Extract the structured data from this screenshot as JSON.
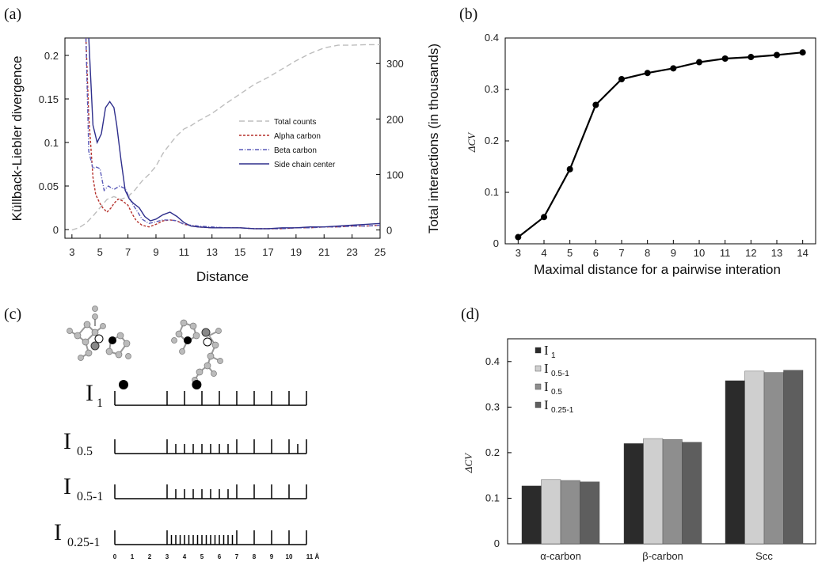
{
  "panels": {
    "a": {
      "label": "(a)"
    },
    "b": {
      "label": "(b)"
    },
    "c": {
      "label": "(c)"
    },
    "d": {
      "label": "(d)"
    }
  },
  "chart_data": [
    {
      "id": "a",
      "type": "line",
      "xlabel": "Distance",
      "ylabel": "Küllback-Liebler divergence",
      "ylabel_right": "Total interactions (in thousands)",
      "xlim": [
        2.5,
        25
      ],
      "ylim": [
        -0.01,
        0.22
      ],
      "ylim_right": [
        -15,
        346
      ],
      "xticks": [
        "3",
        "5",
        "7",
        "9",
        "11",
        "13",
        "15",
        "17",
        "19",
        "21",
        "23",
        "25"
      ],
      "yticks": [
        "0",
        "0.05",
        "0.1",
        "0.15",
        "0.2"
      ],
      "yticks_right": [
        "0",
        "100",
        "200",
        "300"
      ],
      "legend_position": "center-right",
      "series": [
        {
          "name": "Total counts",
          "axis": "right",
          "color": "#bdbdbd",
          "dash": "7,4",
          "x": [
            3,
            3.5,
            4,
            4.5,
            5,
            5.5,
            6,
            6.5,
            7,
            7.5,
            8,
            8.5,
            9,
            9.5,
            10,
            10.5,
            11,
            11.5,
            12,
            13,
            14,
            15,
            16,
            17,
            18,
            19,
            20,
            21,
            22,
            23,
            24,
            25
          ],
          "y": [
            0,
            4,
            12,
            25,
            40,
            55,
            60,
            55,
            60,
            72,
            88,
            100,
            115,
            138,
            155,
            170,
            182,
            188,
            196,
            210,
            228,
            245,
            262,
            275,
            290,
            305,
            318,
            328,
            333,
            333,
            334,
            334
          ]
        },
        {
          "name": "Alpha carbon",
          "axis": "left",
          "color": "#b5302b",
          "dash": "3,2",
          "x": [
            4,
            4.2,
            4.5,
            4.7,
            5,
            5.2,
            5.5,
            5.8,
            6,
            6.3,
            6.6,
            7,
            7.3,
            7.6,
            8,
            8.5,
            9,
            9.5,
            10,
            10.5,
            11,
            12,
            13,
            14,
            15,
            16,
            17,
            18,
            19,
            20,
            21,
            22,
            23,
            24,
            25
          ],
          "y": [
            0.22,
            0.13,
            0.06,
            0.04,
            0.03,
            0.025,
            0.02,
            0.025,
            0.03,
            0.035,
            0.033,
            0.028,
            0.018,
            0.01,
            0.005,
            0.003,
            0.006,
            0.01,
            0.011,
            0.01,
            0.006,
            0.003,
            0.002,
            0.002,
            0.002,
            0.001,
            0.001,
            0.001,
            0.002,
            0.002,
            0.003,
            0.003,
            0.004,
            0.004,
            0.005
          ]
        },
        {
          "name": "Beta carbon",
          "axis": "left",
          "color": "#5a5ab8",
          "dash": "5,2,1,2",
          "x": [
            4,
            4.2,
            4.5,
            4.7,
            5,
            5.3,
            5.6,
            6,
            6.4,
            6.8,
            7,
            7.3,
            7.7,
            8,
            8.5,
            9,
            9.5,
            10,
            10.5,
            11,
            12,
            13,
            14,
            15,
            16,
            17,
            18,
            19,
            20,
            21,
            22,
            23,
            24,
            25
          ],
          "y": [
            0.22,
            0.09,
            0.07,
            0.072,
            0.07,
            0.045,
            0.05,
            0.046,
            0.05,
            0.047,
            0.04,
            0.03,
            0.02,
            0.012,
            0.007,
            0.009,
            0.011,
            0.011,
            0.01,
            0.006,
            0.004,
            0.003,
            0.002,
            0.002,
            0.001,
            0.001,
            0.001,
            0.002,
            0.002,
            0.003,
            0.003,
            0.004,
            0.004,
            0.005
          ]
        },
        {
          "name": "Side chain center",
          "axis": "left",
          "color": "#2f2f8c",
          "dash": "",
          "x": [
            4.2,
            4.5,
            4.8,
            5.1,
            5.4,
            5.7,
            6,
            6.2,
            6.5,
            6.8,
            7.1,
            7.4,
            7.8,
            8.2,
            8.6,
            9,
            9.5,
            10,
            10.5,
            11,
            11.5,
            12,
            13,
            14,
            15,
            16,
            17,
            18,
            19,
            20,
            21,
            22,
            23,
            24,
            25
          ],
          "y": [
            0.22,
            0.12,
            0.1,
            0.11,
            0.14,
            0.147,
            0.14,
            0.12,
            0.08,
            0.045,
            0.035,
            0.03,
            0.025,
            0.015,
            0.01,
            0.012,
            0.017,
            0.02,
            0.015,
            0.008,
            0.004,
            0.003,
            0.002,
            0.002,
            0.002,
            0.001,
            0.001,
            0.002,
            0.002,
            0.003,
            0.003,
            0.004,
            0.005,
            0.006,
            0.007
          ]
        }
      ]
    },
    {
      "id": "b",
      "type": "line",
      "xlabel": "Maximal distance for a pairwise interation",
      "ylabel": "ΔCV",
      "xlim": [
        2.5,
        14.5
      ],
      "ylim": [
        0,
        0.4
      ],
      "xticks": [
        "3",
        "4",
        "5",
        "6",
        "7",
        "8",
        "9",
        "10",
        "11",
        "12",
        "13",
        "14"
      ],
      "yticks": [
        "0",
        "0.1",
        "0.2",
        "0.3",
        "0.4"
      ],
      "series": [
        {
          "name": "",
          "color": "#000000",
          "x": [
            3,
            4,
            5,
            6,
            7,
            8,
            9,
            10,
            11,
            12,
            13,
            14
          ],
          "y": [
            0.013,
            0.052,
            0.145,
            0.27,
            0.32,
            0.332,
            0.341,
            0.353,
            0.36,
            0.363,
            0.367,
            0.372
          ]
        }
      ]
    },
    {
      "id": "d",
      "type": "bar",
      "ylabel": "ΔCV",
      "ylim": [
        0,
        0.45
      ],
      "yticks": [
        "0",
        "0.1",
        "0.2",
        "0.3",
        "0.4"
      ],
      "categories": [
        "α-carbon",
        "β-carbon",
        "Scc"
      ],
      "legend_position": "top-left",
      "series": [
        {
          "name": "I",
          "sub": "1",
          "color": "#2b2b2b",
          "values": [
            0.127,
            0.22,
            0.358
          ]
        },
        {
          "name": "I",
          "sub": "0.5-1",
          "color": "#cfcfcf",
          "values": [
            0.141,
            0.231,
            0.379
          ]
        },
        {
          "name": "I",
          "sub": "0.5",
          "color": "#8e8e8e",
          "values": [
            0.139,
            0.229,
            0.376
          ]
        },
        {
          "name": "I",
          "sub": "0.25-1",
          "color": "#5e5e5e",
          "values": [
            0.136,
            0.223,
            0.381
          ]
        }
      ]
    }
  ],
  "diagram_c": {
    "scales": [
      {
        "name": "I",
        "sub": "1"
      },
      {
        "name": "I",
        "sub": "0.5"
      },
      {
        "name": "I",
        "sub": "0.5-1"
      },
      {
        "name": "I",
        "sub": "0.25-1"
      }
    ],
    "axis_ticks": [
      "0",
      "1",
      "2",
      "3",
      "4",
      "5",
      "6",
      "7",
      "8",
      "9",
      "10",
      "11 Å"
    ],
    "bin_edges": [
      [
        0,
        3,
        4,
        5,
        6,
        7,
        8,
        9,
        10,
        11
      ],
      [
        0,
        3,
        3.5,
        4,
        4.5,
        5,
        5.5,
        6,
        6.5,
        7,
        8,
        9,
        10,
        10.5,
        11
      ],
      [
        0,
        3,
        3.5,
        4,
        4.5,
        5,
        5.5,
        6,
        6.5,
        7,
        8,
        9,
        10,
        11
      ],
      [
        0,
        3,
        3.25,
        3.5,
        3.75,
        4,
        4.25,
        4.5,
        4.75,
        5,
        5.25,
        5.5,
        5.75,
        6,
        6.25,
        6.5,
        6.75,
        7,
        8,
        9,
        10,
        11
      ]
    ],
    "marker_positions": [
      0.5,
      4.7
    ]
  }
}
